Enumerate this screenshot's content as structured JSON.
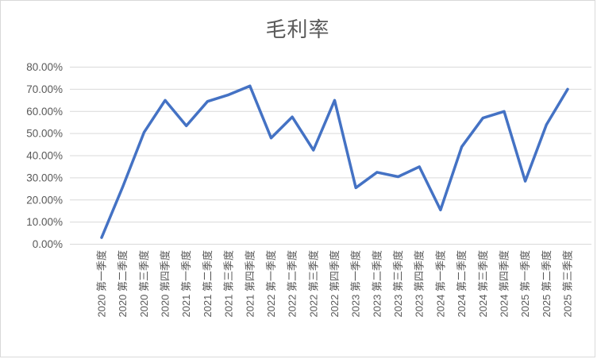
{
  "title": "毛利率",
  "colors": {
    "line": "#4472C4",
    "grid": "#D9D9D9",
    "text": "#595959",
    "border": "#D9D9D9",
    "background": "#FFFFFF"
  },
  "chart_data": {
    "type": "line",
    "title": "毛利率",
    "categories": [
      "2020 第一季度",
      "2020 第二季度",
      "2020 第三季度",
      "2020 第四季度",
      "2021 第一季度",
      "2021 第二季度",
      "2021 第三季度",
      "2021 第四季度",
      "2022 第一季度",
      "2022 第二季度",
      "2022 第三季度",
      "2022 第四季度",
      "2023 第一季度",
      "2023 第二季度",
      "2023 第三季度",
      "2023 第四季度",
      "2024 第一季度",
      "2024 第二季度",
      "2024 第三季度",
      "2024 第四季度",
      "2025 第一季度",
      "2025 第二季度",
      "2025 第三季度"
    ],
    "values": [
      3.0,
      26.0,
      50.5,
      65.0,
      53.5,
      64.5,
      67.5,
      71.5,
      48.0,
      57.5,
      42.5,
      65.0,
      25.5,
      32.5,
      30.5,
      35.0,
      15.5,
      44.0,
      57.0,
      60.0,
      28.5,
      54.0,
      70.0
    ],
    "unit": "%",
    "xlabel": "",
    "ylabel": "",
    "ylim": [
      0,
      80
    ],
    "y_tick_step": 10,
    "y_ticks": [
      "0.00%",
      "10.00%",
      "20.00%",
      "30.00%",
      "40.00%",
      "50.00%",
      "60.00%",
      "70.00%",
      "80.00%"
    ],
    "grid": true,
    "legend": false
  }
}
